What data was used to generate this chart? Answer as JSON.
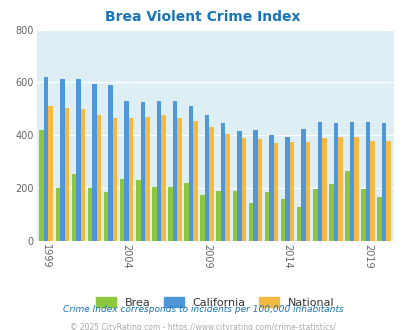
{
  "title": "Brea Violent Crime Index",
  "title_color": "#1874b8",
  "years": [
    1999,
    2000,
    2001,
    2002,
    2003,
    2004,
    2005,
    2006,
    2007,
    2008,
    2009,
    2010,
    2011,
    2012,
    2013,
    2014,
    2015,
    2016,
    2017,
    2018,
    2019,
    2020
  ],
  "brea": [
    420,
    200,
    255,
    200,
    185,
    235,
    230,
    205,
    205,
    220,
    175,
    190,
    190,
    145,
    185,
    160,
    130,
    195,
    215,
    265,
    195,
    165
  ],
  "california": [
    620,
    615,
    615,
    595,
    590,
    530,
    525,
    530,
    530,
    510,
    475,
    445,
    415,
    420,
    400,
    395,
    425,
    450,
    445,
    450,
    450,
    445
  ],
  "national": [
    510,
    505,
    500,
    475,
    465,
    465,
    470,
    475,
    465,
    455,
    430,
    405,
    390,
    385,
    370,
    375,
    375,
    390,
    395,
    395,
    380,
    380
  ],
  "brea_color": "#8dc63f",
  "california_color": "#4f97d7",
  "national_color": "#f5b942",
  "plot_bg": "#ddeef5",
  "ylim": [
    0,
    800
  ],
  "yticks": [
    0,
    200,
    400,
    600,
    800
  ],
  "xtick_years": [
    1999,
    2004,
    2009,
    2014,
    2019
  ],
  "legend_labels": [
    "Brea",
    "California",
    "National"
  ],
  "footnote1": "Crime Index corresponds to incidents per 100,000 inhabitants",
  "footnote2": "© 2025 CityRating.com - https://www.cityrating.com/crime-statistics/",
  "footnote1_color": "#1874b8",
  "footnote2_color": "#aaaaaa",
  "bar_width": 0.28
}
